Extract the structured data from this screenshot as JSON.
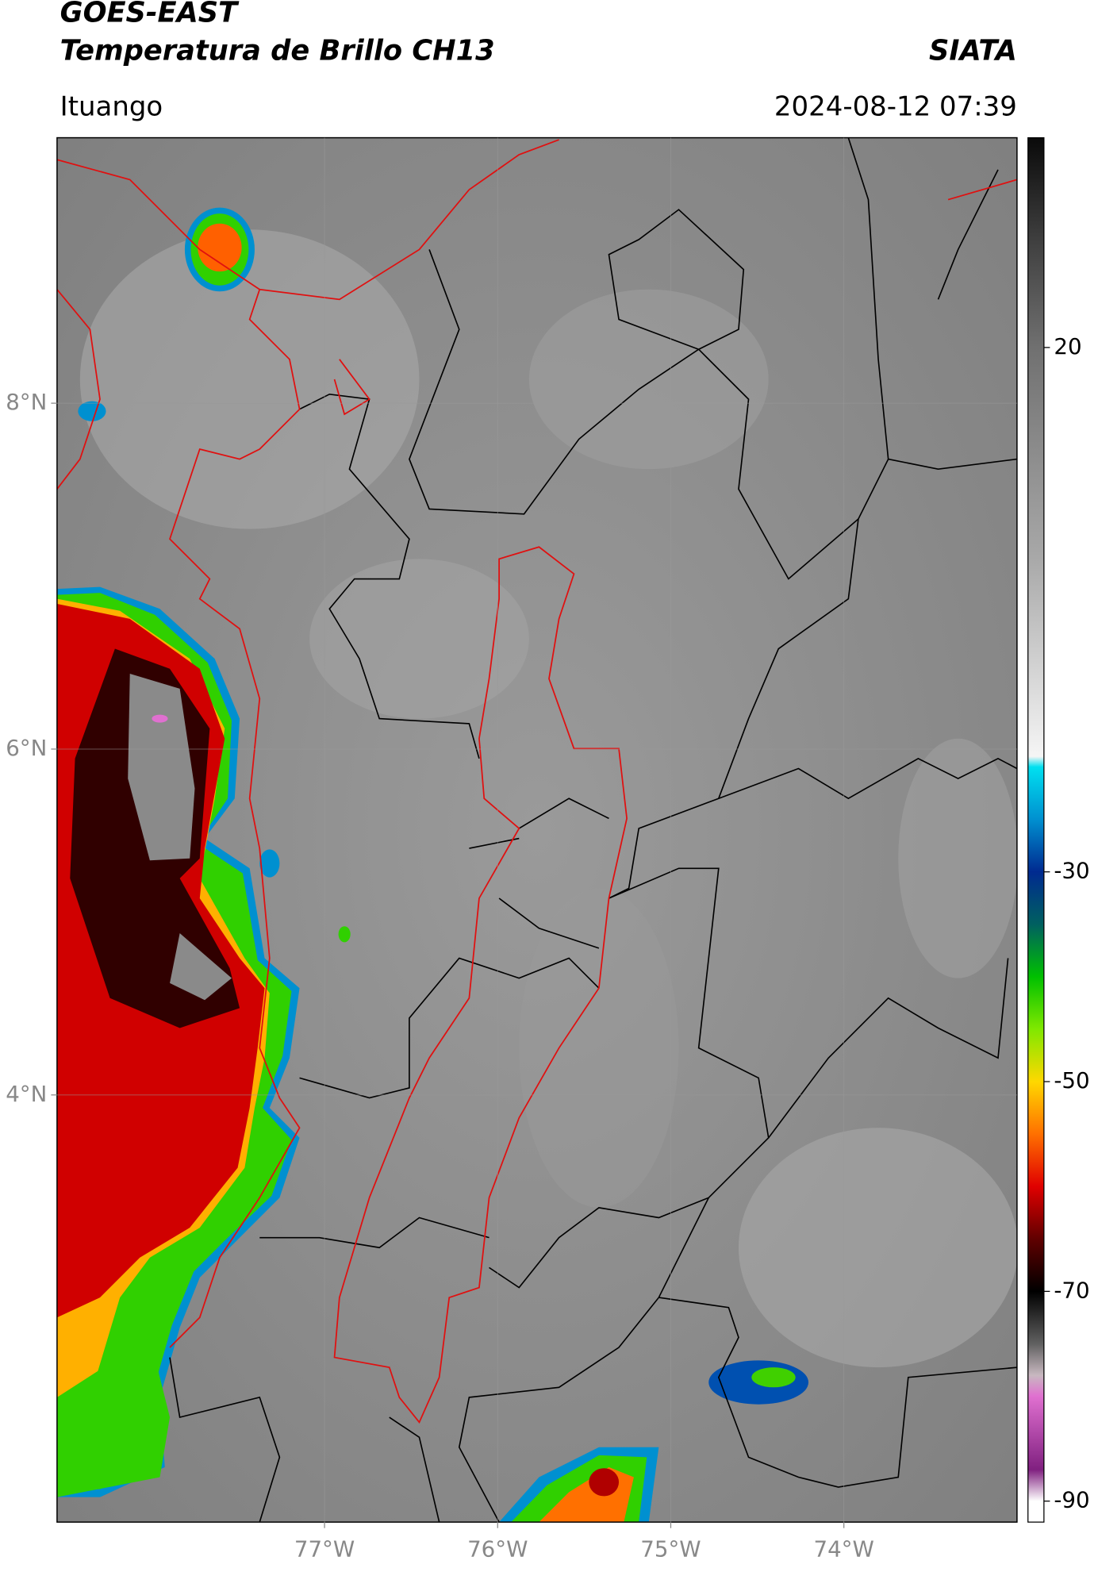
{
  "header": {
    "title": "GOES-EAST",
    "subtitle": "Temperatura de Brillo CH13",
    "source": "SIATA",
    "region": "Ituango",
    "datetime": "2024-08-12 07:39"
  },
  "chart_data": {
    "type": "map",
    "xlim": [
      -78.545,
      -73.0
    ],
    "ylim": [
      1.53,
      9.535
    ],
    "xticks": [
      {
        "value": -77,
        "label": "77°W"
      },
      {
        "value": -76,
        "label": "76°W"
      },
      {
        "value": -75,
        "label": "75°W"
      },
      {
        "value": -74,
        "label": "74°W"
      }
    ],
    "yticks": [
      {
        "value": 8,
        "label": "8°N"
      },
      {
        "value": 6,
        "label": "6°N"
      },
      {
        "value": 4,
        "label": "4°N"
      }
    ],
    "grid": true,
    "colorbar": {
      "lim": [
        -92,
        40
      ],
      "ticks": [
        20,
        -30,
        -50,
        -70,
        -90
      ],
      "colormap": [
        {
          "value": 40,
          "color": "#0a0a0a"
        },
        {
          "value": 30,
          "color": "#404040"
        },
        {
          "value": 20,
          "color": "#707070"
        },
        {
          "value": 0,
          "color": "#a8a8a8"
        },
        {
          "value": -19,
          "color": "#f5f5f5"
        },
        {
          "value": -20,
          "color": "#00e0f0"
        },
        {
          "value": -25,
          "color": "#0090d0"
        },
        {
          "value": -30,
          "color": "#002a90"
        },
        {
          "value": -35,
          "color": "#006060"
        },
        {
          "value": -40,
          "color": "#00c000"
        },
        {
          "value": -45,
          "color": "#80e800"
        },
        {
          "value": -50,
          "color": "#ffd800"
        },
        {
          "value": -55,
          "color": "#ff7000"
        },
        {
          "value": -60,
          "color": "#e00000"
        },
        {
          "value": -65,
          "color": "#600000"
        },
        {
          "value": -70,
          "color": "#000000"
        },
        {
          "value": -75,
          "color": "#606060"
        },
        {
          "value": -78,
          "color": "#c8b8c0"
        },
        {
          "value": -80,
          "color": "#e070d0"
        },
        {
          "value": -87,
          "color": "#802080"
        },
        {
          "value": -90,
          "color": "#ffffff"
        },
        {
          "value": -92,
          "color": "#ffffff"
        }
      ]
    }
  }
}
